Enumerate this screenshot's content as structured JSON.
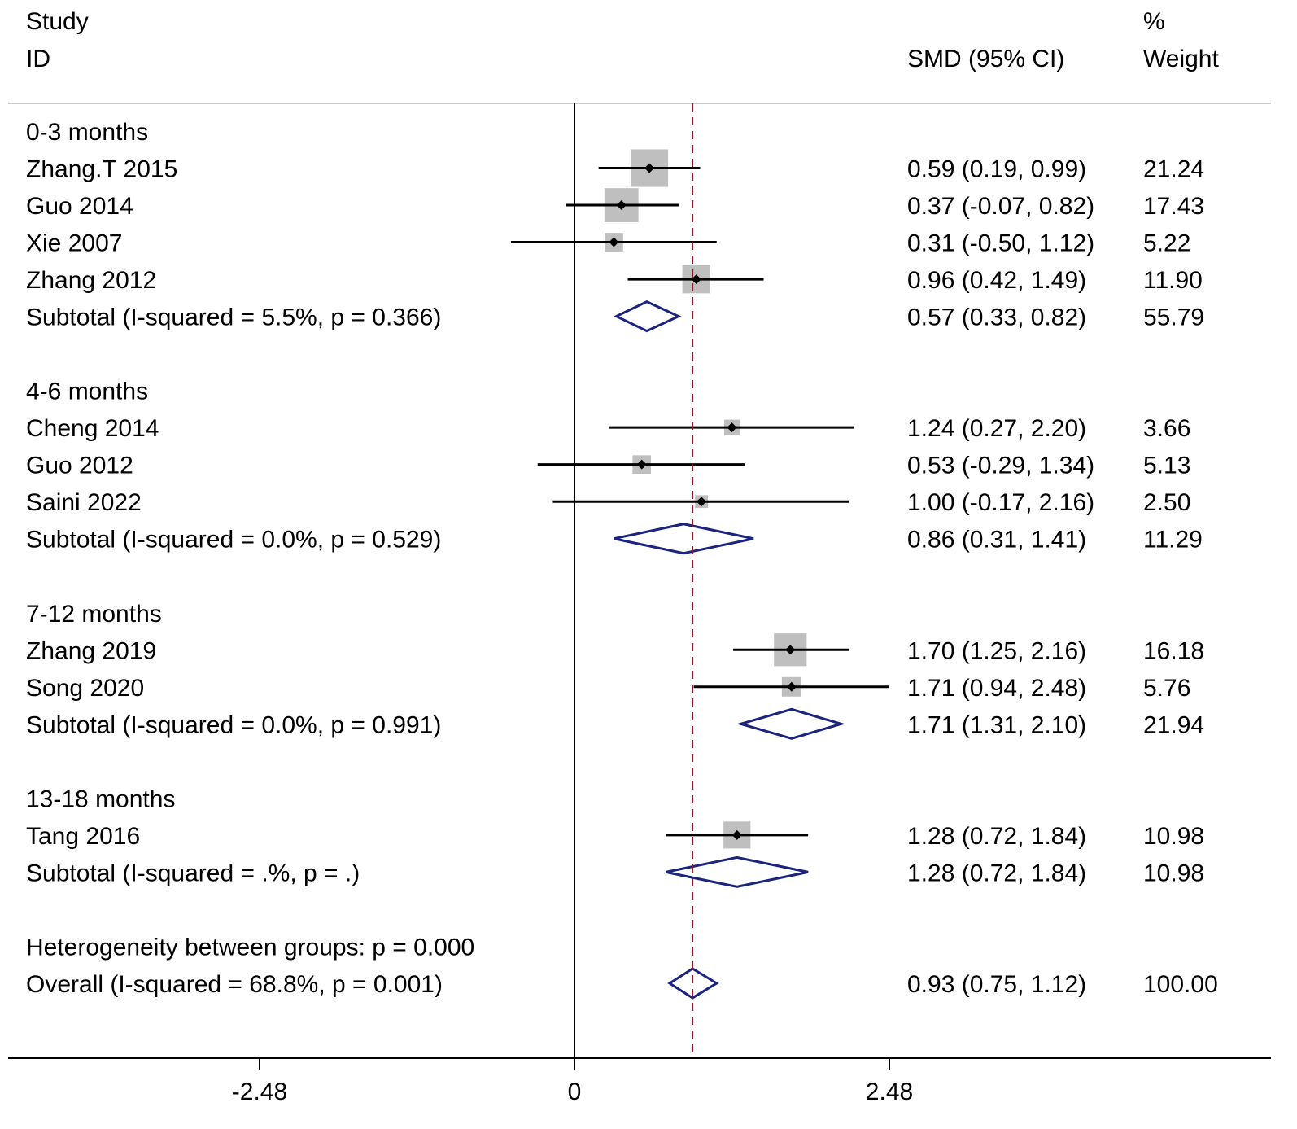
{
  "chart_data": {
    "type": "forest",
    "headers": {
      "study": "Study",
      "id": "ID",
      "effect": "SMD (95% CI)",
      "weight_top": "%",
      "weight": "Weight"
    },
    "xaxis": {
      "ticks": [
        -2.48,
        0,
        2.48
      ],
      "tick_labels": [
        "-2.48",
        "0",
        "2.48"
      ],
      "null_line": 0
    },
    "overall_line": 0.93,
    "colors": {
      "ci_line": "#000000",
      "weight_box": "#bfbfbf",
      "diamond": "#1a237e",
      "overall_line": "#8b1a2b"
    },
    "groups": [
      {
        "label": "0-3 months",
        "studies": [
          {
            "name": "Zhang.T 2015",
            "est": 0.59,
            "lo": 0.19,
            "hi": 0.99,
            "ci_text": "0.59 (0.19, 0.99)",
            "weight": 21.24,
            "weight_text": "21.24"
          },
          {
            "name": "Guo 2014",
            "est": 0.37,
            "lo": -0.07,
            "hi": 0.82,
            "ci_text": "0.37 (-0.07, 0.82)",
            "weight": 17.43,
            "weight_text": "17.43"
          },
          {
            "name": "Xie 2007",
            "est": 0.31,
            "lo": -0.5,
            "hi": 1.12,
            "ci_text": "0.31 (-0.50, 1.12)",
            "weight": 5.22,
            "weight_text": "5.22"
          },
          {
            "name": "Zhang 2012",
            "est": 0.96,
            "lo": 0.42,
            "hi": 1.49,
            "ci_text": "0.96 (0.42, 1.49)",
            "weight": 11.9,
            "weight_text": "11.90"
          }
        ],
        "subtotal": {
          "label": "Subtotal  (I-squared = 5.5%, p = 0.366)",
          "est": 0.57,
          "lo": 0.33,
          "hi": 0.82,
          "ci_text": "0.57 (0.33, 0.82)",
          "weight_text": "55.79"
        }
      },
      {
        "label": "4-6 months",
        "studies": [
          {
            "name": "Cheng 2014",
            "est": 1.24,
            "lo": 0.27,
            "hi": 2.2,
            "ci_text": "1.24 (0.27, 2.20)",
            "weight": 3.66,
            "weight_text": "3.66"
          },
          {
            "name": "Guo 2012",
            "est": 0.53,
            "lo": -0.29,
            "hi": 1.34,
            "ci_text": "0.53 (-0.29, 1.34)",
            "weight": 5.13,
            "weight_text": "5.13"
          },
          {
            "name": "Saini 2022",
            "est": 1.0,
            "lo": -0.17,
            "hi": 2.16,
            "ci_text": "1.00 (-0.17, 2.16)",
            "weight": 2.5,
            "weight_text": "2.50"
          }
        ],
        "subtotal": {
          "label": "Subtotal  (I-squared = 0.0%, p = 0.529)",
          "est": 0.86,
          "lo": 0.31,
          "hi": 1.41,
          "ci_text": "0.86 (0.31, 1.41)",
          "weight_text": "11.29"
        }
      },
      {
        "label": "7-12 months",
        "studies": [
          {
            "name": "Zhang 2019",
            "est": 1.7,
            "lo": 1.25,
            "hi": 2.16,
            "ci_text": "1.70 (1.25, 2.16)",
            "weight": 16.18,
            "weight_text": "16.18"
          },
          {
            "name": "Song 2020",
            "est": 1.71,
            "lo": 0.94,
            "hi": 2.48,
            "ci_text": "1.71 (0.94, 2.48)",
            "weight": 5.76,
            "weight_text": "5.76"
          }
        ],
        "subtotal": {
          "label": "Subtotal  (I-squared = 0.0%, p = 0.991)",
          "est": 1.71,
          "lo": 1.31,
          "hi": 2.1,
          "ci_text": "1.71 (1.31, 2.10)",
          "weight_text": "21.94"
        }
      },
      {
        "label": "13-18 months",
        "studies": [
          {
            "name": "Tang 2016",
            "est": 1.28,
            "lo": 0.72,
            "hi": 1.84,
            "ci_text": "1.28 (0.72, 1.84)",
            "weight": 10.98,
            "weight_text": "10.98"
          }
        ],
        "subtotal": {
          "label": "Subtotal  (I-squared = .%, p = .)",
          "est": 1.28,
          "lo": 0.72,
          "hi": 1.84,
          "ci_text": "1.28 (0.72, 1.84)",
          "weight_text": "10.98"
        }
      }
    ],
    "heterogeneity": "Heterogeneity between groups: p = 0.000",
    "overall": {
      "label": "Overall  (I-squared = 68.8%, p = 0.001)",
      "est": 0.93,
      "lo": 0.75,
      "hi": 1.12,
      "ci_text": "0.93 (0.75, 1.12)",
      "weight_text": "100.00"
    }
  }
}
